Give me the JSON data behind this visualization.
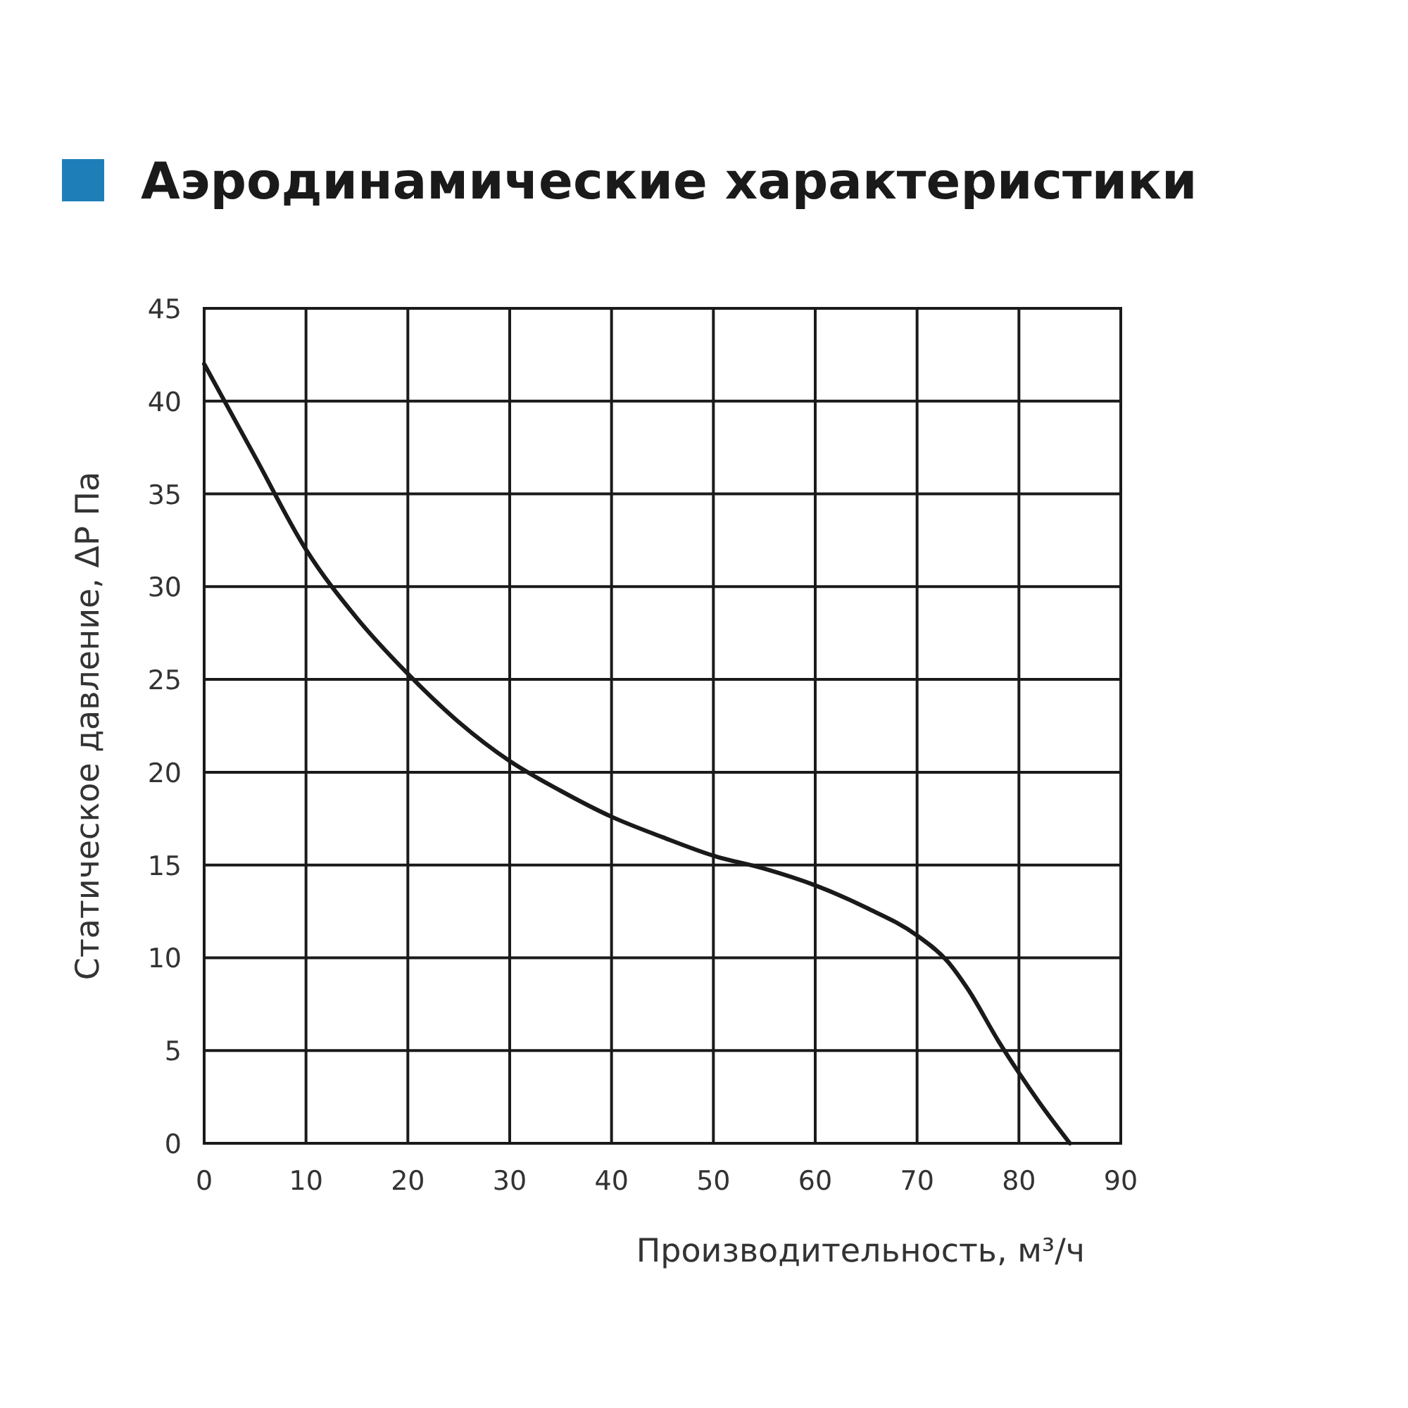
{
  "chart_data": {
    "type": "line",
    "title": "Аэродинамические характеристики",
    "xlabel": "Производительность, м³/ч",
    "ylabel": "Статическое давление, ΔP Па",
    "x": [
      0,
      5,
      10,
      15,
      20,
      25,
      30,
      35,
      40,
      45,
      50,
      55,
      60,
      65,
      70,
      73,
      75,
      78,
      80,
      82,
      85
    ],
    "series": [
      {
        "color": "#1a1a1a",
        "values": [
          42,
          37,
          32,
          28.3,
          25.3,
          22.7,
          20.6,
          19,
          17.6,
          16.5,
          15.5,
          14.8,
          13.9,
          12.7,
          11.2,
          9.8,
          8.3,
          5.5,
          3.8,
          2.2,
          0
        ]
      }
    ],
    "xlim": [
      0,
      90
    ],
    "xticks": [
      0,
      10,
      20,
      30,
      40,
      50,
      60,
      70,
      80,
      90
    ],
    "ylim": [
      0,
      45
    ],
    "yticks": [
      0,
      5,
      10,
      15,
      20,
      25,
      30,
      35,
      40,
      45
    ],
    "grid": true,
    "marker": "none",
    "line_style": "solid"
  }
}
